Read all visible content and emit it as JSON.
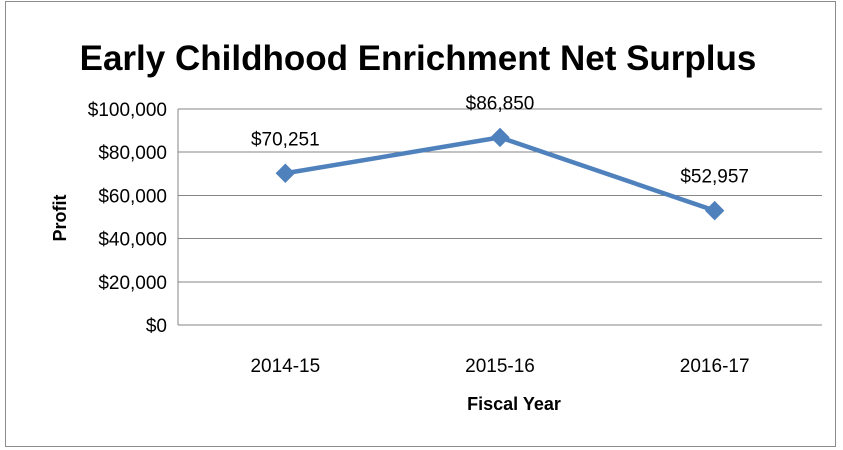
{
  "chart_data": {
    "type": "line",
    "title": "Early Childhood Enrichment Net Surplus",
    "xlabel": "Fiscal Year",
    "ylabel": "Profit",
    "categories": [
      "2014-15",
      "2015-16",
      "2016-17"
    ],
    "series": [
      {
        "values": [
          70251,
          86850,
          52957
        ]
      }
    ],
    "data_labels": [
      "$70,251",
      "$86,850",
      "$52,957"
    ],
    "y_ticks": [
      0,
      20000,
      40000,
      60000,
      80000,
      100000
    ],
    "y_tick_labels": [
      "$0",
      "$20,000",
      "$40,000",
      "$60,000",
      "$80,000",
      "$100,000"
    ],
    "ylim": [
      0,
      100000
    ],
    "grid": true,
    "legend": "none",
    "colors": {
      "series": "#4f81bd",
      "grid": "#868686",
      "frame": "#8c8c8c"
    }
  }
}
